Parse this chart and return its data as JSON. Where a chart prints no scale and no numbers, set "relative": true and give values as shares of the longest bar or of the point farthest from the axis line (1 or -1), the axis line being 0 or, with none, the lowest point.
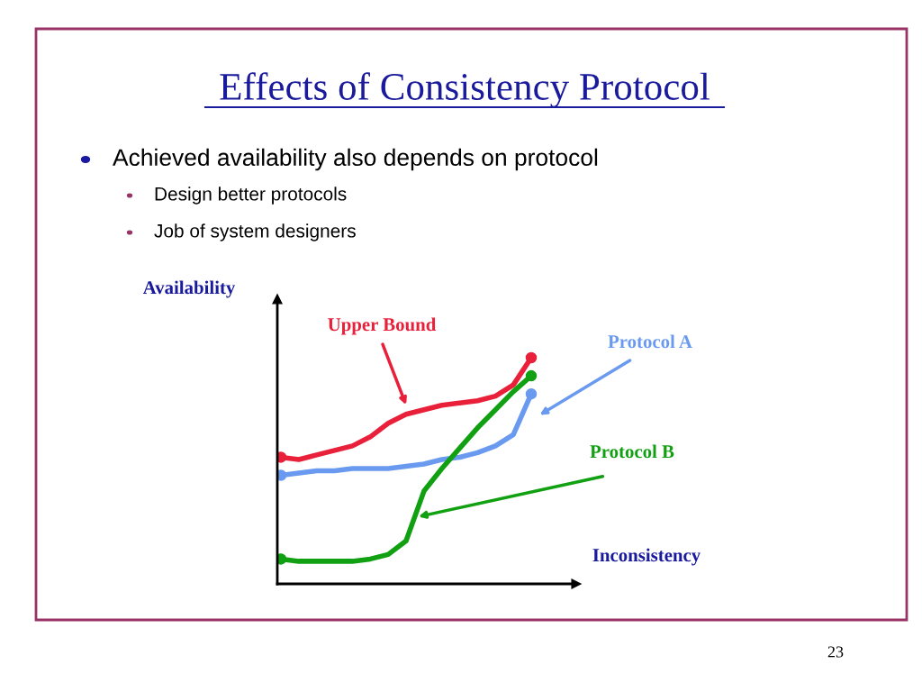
{
  "chart_data": {
    "type": "line",
    "title": "Effects of Consistency Protocol",
    "xlabel": "Inconsistency",
    "ylabel": "Availability",
    "relative": true,
    "line_style": "solid",
    "categories": [
      null,
      null,
      null,
      null,
      null,
      null,
      null,
      null,
      null,
      null,
      null,
      null,
      null,
      null,
      null
    ],
    "series": [
      {
        "name": "Upper Bound",
        "color": "#e8203a",
        "values": [
          0.56,
          0.55,
          0.57,
          0.59,
          0.61,
          0.65,
          0.71,
          0.75,
          0.77,
          0.79,
          0.8,
          0.81,
          0.83,
          0.88,
          1.0
        ]
      },
      {
        "name": "Protocol A",
        "color": "#6a9af0",
        "values": [
          0.48,
          0.49,
          0.5,
          0.5,
          0.51,
          0.51,
          0.51,
          0.52,
          0.53,
          0.55,
          0.56,
          0.58,
          0.61,
          0.66,
          0.84
        ]
      },
      {
        "name": "Protocol B",
        "color": "#11a011",
        "values": [
          0.11,
          0.1,
          0.1,
          0.1,
          0.1,
          0.11,
          0.13,
          0.19,
          0.41,
          0.51,
          0.6,
          0.69,
          0.77,
          0.85,
          0.92
        ]
      }
    ],
    "annotations": [
      "Achieved availability also depends on protocol",
      "Design better protocols",
      "Job of system designers",
      "23"
    ]
  }
}
